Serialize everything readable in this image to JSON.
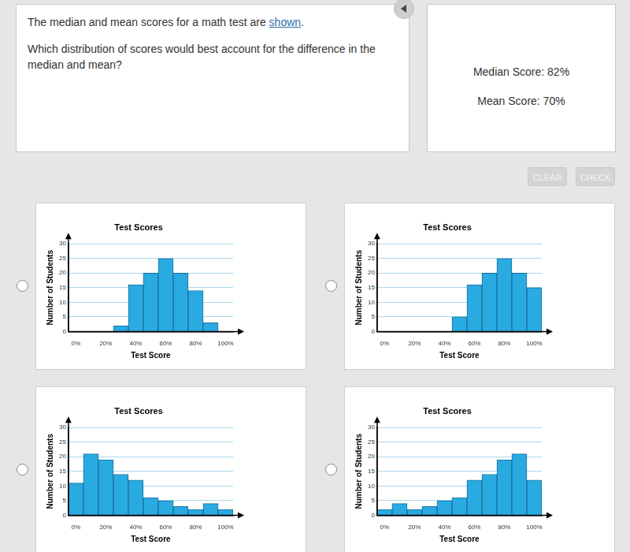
{
  "question": {
    "intro": "The median and mean scores for a math test are ",
    "link": "shown",
    "end": ".",
    "prompt": "Which distribution of scores would best account for the difference in the median and mean?"
  },
  "stats": [
    "Median Score: 82%",
    "Mean Score: 70%"
  ],
  "buttons": [
    "CLEAR",
    "CHECK"
  ],
  "chart_data": [
    {
      "type": "histogram",
      "title": "Test Scores",
      "x_label": "Test Score",
      "y_label": "Number of Students",
      "bins": [
        -5,
        5,
        15,
        25,
        35,
        45,
        55,
        65,
        75,
        85,
        95,
        105
      ],
      "counts": [
        0,
        0,
        0,
        2,
        16,
        20,
        25,
        20,
        14,
        3,
        0
      ],
      "color": "#29abe2",
      "xlim": [
        -5,
        105
      ],
      "xticks": [
        {
          "value": 0,
          "label": "0%"
        },
        {
          "value": 20,
          "label": "20%"
        },
        {
          "value": 40,
          "label": "40%"
        },
        {
          "value": 60,
          "label": "60%"
        },
        {
          "value": 80,
          "label": "80%"
        },
        {
          "value": 100,
          "label": "100%"
        }
      ],
      "ylim": [
        0,
        30
      ],
      "yticks": [
        0,
        5,
        10,
        15,
        20,
        25,
        30
      ],
      "grid": true
    },
    {
      "type": "histogram",
      "title": "Test Scores",
      "x_label": "Test Score",
      "y_label": "Number of Students",
      "bins": [
        -5,
        5,
        15,
        25,
        35,
        45,
        55,
        65,
        75,
        85,
        95,
        105
      ],
      "counts": [
        0,
        0,
        0,
        0,
        0,
        5,
        16,
        20,
        25,
        20,
        15
      ],
      "color": "#29abe2",
      "xlim": [
        -5,
        105
      ],
      "xticks": [
        {
          "value": 0,
          "label": "0%"
        },
        {
          "value": 20,
          "label": "20%"
        },
        {
          "value": 40,
          "label": "40%"
        },
        {
          "value": 60,
          "label": "60%"
        },
        {
          "value": 80,
          "label": "80%"
        },
        {
          "value": 100,
          "label": "100%"
        }
      ],
      "ylim": [
        0,
        30
      ],
      "yticks": [
        0,
        5,
        10,
        15,
        20,
        25,
        30
      ],
      "grid": true
    },
    {
      "type": "histogram",
      "title": "Test Scores",
      "x_label": "Test Score",
      "y_label": "Number of Students",
      "bins": [
        -5,
        5,
        15,
        25,
        35,
        45,
        55,
        65,
        75,
        85,
        95,
        105
      ],
      "counts": [
        11,
        21,
        19,
        14,
        12,
        6,
        5,
        3,
        2,
        4,
        2
      ],
      "color": "#29abe2",
      "xlim": [
        -5,
        105
      ],
      "xticks": [
        {
          "value": 0,
          "label": "0%"
        },
        {
          "value": 20,
          "label": "20%"
        },
        {
          "value": 40,
          "label": "40%"
        },
        {
          "value": 60,
          "label": "60%"
        },
        {
          "value": 80,
          "label": "80%"
        },
        {
          "value": 100,
          "label": "100%"
        }
      ],
      "ylim": [
        0,
        30
      ],
      "yticks": [
        0,
        5,
        10,
        15,
        20,
        25,
        30
      ],
      "grid": true
    },
    {
      "type": "histogram",
      "title": "Test Scores",
      "x_label": "Test Score",
      "y_label": "Number of Students",
      "bins": [
        -5,
        5,
        15,
        25,
        35,
        45,
        55,
        65,
        75,
        85,
        95,
        105
      ],
      "counts": [
        2,
        4,
        2,
        3,
        5,
        6,
        12,
        14,
        19,
        21,
        12
      ],
      "color": "#29abe2",
      "xlim": [
        -5,
        105
      ],
      "xticks": [
        {
          "value": 0,
          "label": "0%"
        },
        {
          "value": 20,
          "label": "20%"
        },
        {
          "value": 40,
          "label": "40%"
        },
        {
          "value": 60,
          "label": "60%"
        },
        {
          "value": 80,
          "label": "80%"
        },
        {
          "value": 100,
          "label": "100%"
        }
      ],
      "ylim": [
        0,
        30
      ],
      "yticks": [
        0,
        5,
        10,
        15,
        20,
        25,
        30
      ],
      "grid": true
    }
  ]
}
